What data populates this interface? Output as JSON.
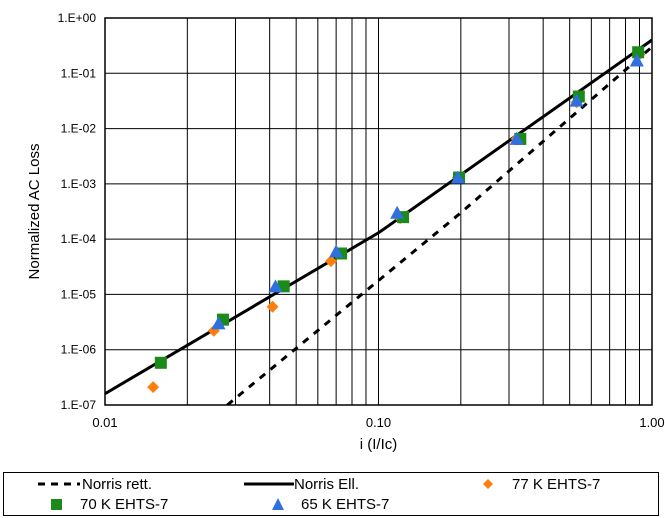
{
  "chart_data": {
    "type": "scatter",
    "xlabel": "i (I/Ic)",
    "ylabel": "Normalized AC Loss",
    "x_scale": "log",
    "y_scale": "log",
    "xlim": [
      0.01,
      1.0
    ],
    "ylim": [
      1e-07,
      1.0
    ],
    "x_tick_labels": [
      "0.01",
      "0.10",
      "1.00"
    ],
    "y_tick_labels": [
      "1.E-07",
      "1.E-06",
      "1.E-05",
      "1.E-04",
      "1.E-03",
      "1.E-02",
      "1.E-01",
      "1.E+00"
    ],
    "grid": true,
    "legend_position": "bottom",
    "series": [
      {
        "name": "Norris rett.",
        "kind": "line",
        "style": "dashed",
        "color": "#000000",
        "x": [
          0.028,
          0.2,
          1.0
        ],
        "y": [
          1e-07,
          0.0003,
          0.3
        ]
      },
      {
        "name": "Norris Ell.",
        "kind": "line",
        "style": "solid",
        "color": "#000000",
        "x": [
          0.01,
          0.1,
          1.0
        ],
        "y": [
          1.6e-07,
          0.00013,
          0.4
        ]
      },
      {
        "name": "77 K EHTS-7",
        "kind": "scatter",
        "marker": "diamond",
        "color": "#ff7f0e",
        "x": [
          0.015,
          0.025,
          0.041,
          0.067,
          0.12,
          0.195,
          0.32,
          0.53,
          0.9
        ],
        "y": [
          2.1e-07,
          2.2e-06,
          6e-06,
          4e-05,
          0.00024,
          0.0013,
          0.0065,
          0.03,
          0.22
        ]
      },
      {
        "name": "70 K EHTS-7",
        "kind": "scatter",
        "marker": "square",
        "color": "#1a8a1a",
        "x": [
          0.016,
          0.027,
          0.045,
          0.073,
          0.123,
          0.197,
          0.33,
          0.54,
          0.89
        ],
        "y": [
          5.8e-07,
          3.5e-06,
          1.4e-05,
          5.5e-05,
          0.00025,
          0.0013,
          0.0065,
          0.038,
          0.24
        ]
      },
      {
        "name": "65 K EHTS-7",
        "kind": "scatter",
        "marker": "triangle",
        "color": "#2f6fe0",
        "x": [
          0.026,
          0.042,
          0.07,
          0.117,
          0.195,
          0.32,
          0.53,
          0.88
        ],
        "y": [
          3e-06,
          1.4e-05,
          6e-05,
          0.0003,
          0.0013,
          0.0065,
          0.032,
          0.17
        ]
      }
    ]
  }
}
